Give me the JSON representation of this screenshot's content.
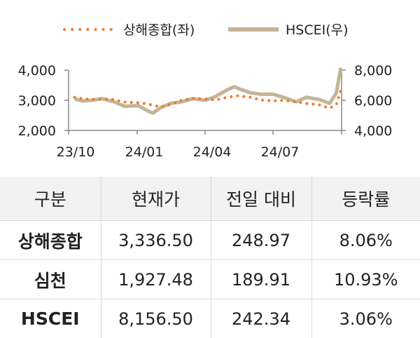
{
  "chart_data": {
    "type": "line",
    "x_ticks": [
      "23/10",
      "24/01",
      "24/04",
      "24/07"
    ],
    "left_ticks": [
      "4,000",
      "3,000",
      "2,000"
    ],
    "right_ticks": [
      "8,000",
      "6,000",
      "4,000"
    ],
    "ylim_left": [
      2000,
      4000
    ],
    "ylim_right": [
      4000,
      8000
    ],
    "legend_position": "top",
    "series": [
      {
        "name": "상해종합(좌)",
        "axis": "left",
        "style": "dotted",
        "color": "#ED7D31",
        "x": [
          "2023-10-09",
          "2023-10-20",
          "2023-11-01",
          "2023-11-15",
          "2023-12-01",
          "2023-12-15",
          "2024-01-02",
          "2024-01-15",
          "2024-02-01",
          "2024-02-15",
          "2024-03-01",
          "2024-03-15",
          "2024-04-01",
          "2024-04-15",
          "2024-05-01",
          "2024-05-15",
          "2024-06-01",
          "2024-06-15",
          "2024-07-01",
          "2024-07-15",
          "2024-08-01",
          "2024-08-15",
          "2024-09-01",
          "2024-09-15",
          "2024-09-24",
          "2024-09-30"
        ],
        "values": [
          3100,
          3050,
          3030,
          3050,
          3020,
          2940,
          2920,
          2880,
          2780,
          2860,
          3010,
          3060,
          3050,
          3010,
          3100,
          3150,
          3100,
          3010,
          2980,
          3000,
          2950,
          2890,
          2850,
          2740,
          2860,
          3336.5
        ]
      },
      {
        "name": "HSCEI(우)",
        "axis": "right",
        "style": "solid",
        "color": "#C4B497",
        "x": [
          "2023-10-09",
          "2023-10-20",
          "2023-11-01",
          "2023-11-15",
          "2023-12-01",
          "2023-12-15",
          "2024-01-02",
          "2024-01-15",
          "2024-01-22",
          "2024-02-01",
          "2024-02-15",
          "2024-03-01",
          "2024-03-15",
          "2024-04-01",
          "2024-04-15",
          "2024-05-01",
          "2024-05-10",
          "2024-05-20",
          "2024-06-01",
          "2024-06-15",
          "2024-07-01",
          "2024-07-15",
          "2024-08-01",
          "2024-08-15",
          "2024-09-01",
          "2024-09-15",
          "2024-09-24",
          "2024-09-30"
        ],
        "values": [
          6100,
          5950,
          6000,
          6100,
          5900,
          5600,
          5650,
          5300,
          5150,
          5500,
          5800,
          5900,
          6100,
          6000,
          6250,
          6700,
          6900,
          6700,
          6500,
          6400,
          6400,
          6200,
          5900,
          6200,
          6050,
          5800,
          6500,
          8156.5
        ]
      }
    ]
  },
  "table": {
    "headers": [
      "구분",
      "현재가",
      "전일 대비",
      "등락률"
    ],
    "rows": [
      [
        "상해종합",
        "3,336.50",
        "248.97",
        "8.06%"
      ],
      [
        "심천",
        "1,927.48",
        "189.91",
        "10.93%"
      ],
      [
        "HSCEI",
        "8,156.50",
        "242.34",
        "3.06%"
      ]
    ]
  }
}
